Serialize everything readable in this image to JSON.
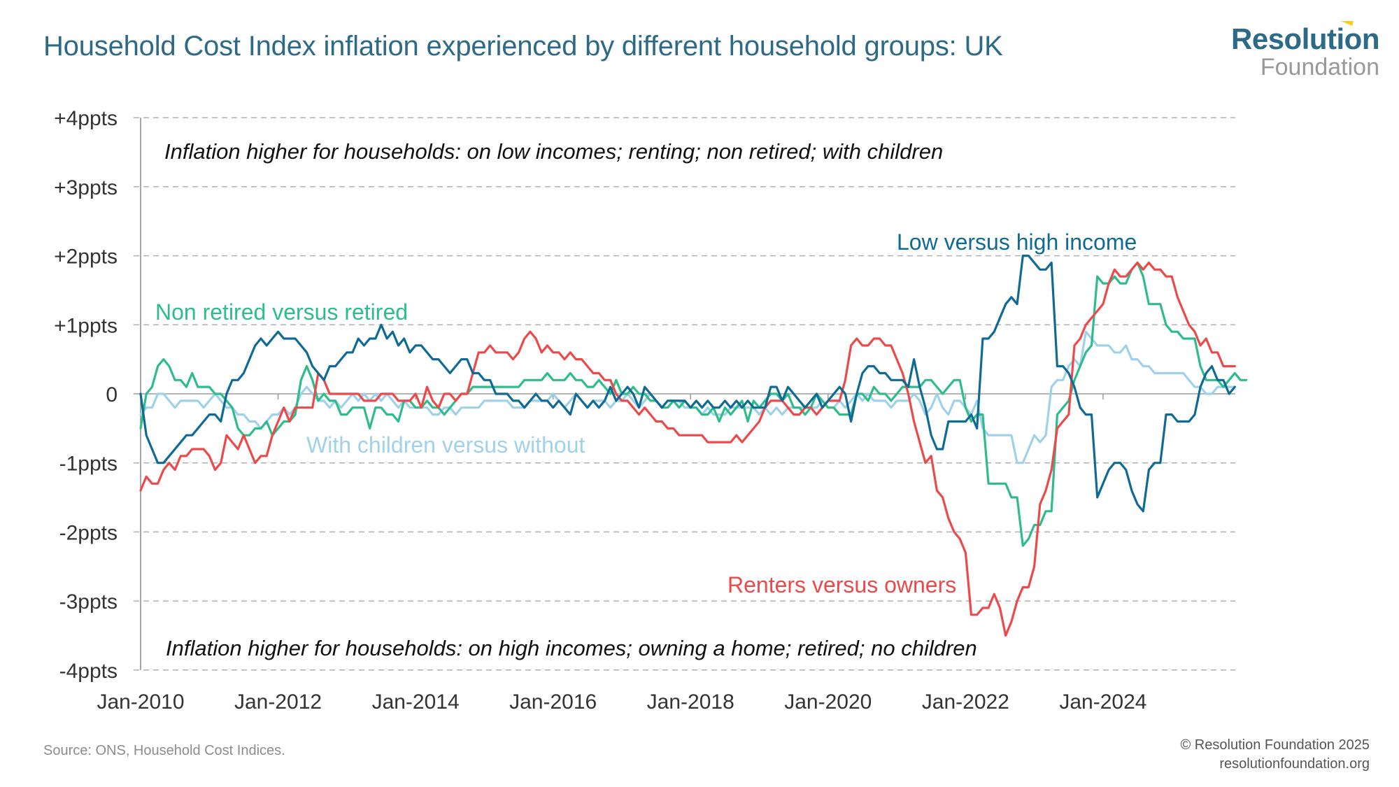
{
  "header": {
    "title": "Household Cost Index inflation experienced by different household groups: UK",
    "logo_line1": "Resolution",
    "logo_line2": "Foundation"
  },
  "footer": {
    "source": "Source: ONS, Household Cost Indices.",
    "copyright": "© Resolution Foundation 2025",
    "website": "resolutionfoundation.org"
  },
  "chart_data": {
    "type": "line",
    "title": "Household Cost Index inflation experienced by different household groups: UK",
    "xlabel": "",
    "ylabel": "",
    "x_start": "Jan-2010",
    "frequency": "monthly",
    "n_points": 192,
    "xticks": [
      "Jan-2010",
      "Jan-2012",
      "Jan-2014",
      "Jan-2016",
      "Jan-2018",
      "Jan-2020",
      "Jan-2022",
      "Jan-2024"
    ],
    "xtick_month_index": [
      0,
      24,
      48,
      72,
      96,
      120,
      144,
      168
    ],
    "yticks": [
      4,
      3,
      2,
      1,
      0,
      -1,
      -2,
      -3,
      -4
    ],
    "ytick_labels": [
      "+4ppts",
      "+3ppts",
      "+2ppts",
      "+1ppts",
      "0",
      "-1ppts",
      "-2ppts",
      "-3ppts",
      "-4ppts"
    ],
    "ylim": [
      -4,
      4
    ],
    "grid": "horizontal dashed",
    "annotations": {
      "top": "Inflation higher for households: on low incomes; renting; non retired; with children",
      "bottom": "Inflation higher for households: on high incomes; owning a home; retired; no children"
    },
    "series": [
      {
        "name": "Low versus high income",
        "color": "#0f6b94",
        "values": [
          0.0,
          -0.6,
          -0.8,
          -1.0,
          -1.0,
          -0.9,
          -0.8,
          -0.7,
          -0.6,
          -0.6,
          -0.5,
          -0.4,
          -0.3,
          -0.3,
          -0.4,
          0.0,
          0.2,
          0.2,
          0.3,
          0.5,
          0.7,
          0.8,
          0.7,
          0.8,
          0.9,
          0.8,
          0.8,
          0.8,
          0.7,
          0.6,
          0.4,
          0.3,
          0.2,
          0.4,
          0.4,
          0.5,
          0.6,
          0.6,
          0.8,
          0.7,
          0.8,
          0.8,
          1.0,
          0.8,
          0.9,
          0.7,
          0.8,
          0.6,
          0.7,
          0.7,
          0.6,
          0.5,
          0.5,
          0.4,
          0.3,
          0.4,
          0.5,
          0.5,
          0.3,
          0.3,
          0.2,
          0.2,
          0.0,
          0.0,
          0.0,
          -0.1,
          -0.1,
          -0.2,
          -0.1,
          0.0,
          -0.1,
          -0.1,
          -0.2,
          -0.1,
          -0.2,
          -0.3,
          0.0,
          -0.1,
          -0.2,
          -0.1,
          -0.2,
          -0.1,
          0.1,
          -0.1,
          0.0,
          0.1,
          0.0,
          -0.2,
          0.1,
          0.0,
          -0.1,
          -0.2,
          -0.1,
          -0.1,
          -0.1,
          -0.1,
          -0.2,
          -0.1,
          -0.2,
          -0.1,
          -0.2,
          -0.2,
          -0.1,
          -0.2,
          -0.1,
          -0.2,
          -0.1,
          -0.2,
          -0.2,
          -0.2,
          0.1,
          0.1,
          -0.1,
          0.1,
          0.0,
          -0.1,
          -0.2,
          -0.1,
          0.0,
          -0.2,
          -0.1,
          0.0,
          0.1,
          0.0,
          -0.4,
          0.0,
          0.3,
          0.4,
          0.4,
          0.3,
          0.3,
          0.2,
          0.2,
          0.2,
          0.1,
          0.5,
          0.1,
          -0.2,
          -0.6,
          -0.8,
          -0.8,
          -0.4,
          -0.4,
          -0.4,
          -0.4,
          -0.3,
          -0.5,
          0.8,
          0.8,
          0.9,
          1.1,
          1.3,
          1.4,
          1.3,
          2.0,
          2.0,
          1.9,
          1.8,
          1.8,
          1.9,
          0.4,
          0.4,
          0.3,
          0.1,
          -0.2,
          -0.3,
          -0.3,
          -1.5,
          -1.3,
          -1.1,
          -1.0,
          -1.0,
          -1.1,
          -1.4,
          -1.6,
          -1.7,
          -1.1,
          -1.0,
          -1.0,
          -0.3,
          -0.3,
          -0.4,
          -0.4,
          -0.4,
          -0.3,
          0.1,
          0.3,
          0.4,
          0.2,
          0.2,
          0.0,
          0.1
        ]
      },
      {
        "name": "Non retired versus retired",
        "color": "#2fbc8b",
        "values": [
          -0.5,
          0.0,
          0.1,
          0.4,
          0.5,
          0.4,
          0.2,
          0.2,
          0.1,
          0.3,
          0.1,
          0.1,
          0.1,
          0.0,
          0.0,
          -0.1,
          -0.2,
          -0.5,
          -0.6,
          -0.6,
          -0.5,
          -0.5,
          -0.4,
          -0.6,
          -0.5,
          -0.4,
          -0.4,
          -0.3,
          0.2,
          0.4,
          0.2,
          -0.1,
          0.0,
          -0.1,
          -0.1,
          -0.3,
          -0.3,
          -0.2,
          -0.2,
          -0.2,
          -0.5,
          -0.2,
          -0.2,
          -0.3,
          -0.3,
          -0.4,
          -0.1,
          -0.1,
          -0.2,
          -0.2,
          -0.1,
          -0.2,
          -0.2,
          -0.3,
          -0.2,
          -0.1,
          0.0,
          0.0,
          0.1,
          0.1,
          0.1,
          0.1,
          0.1,
          0.1,
          0.1,
          0.1,
          0.1,
          0.2,
          0.2,
          0.2,
          0.2,
          0.3,
          0.2,
          0.2,
          0.2,
          0.3,
          0.2,
          0.2,
          0.1,
          0.1,
          0.2,
          0.1,
          0.0,
          0.2,
          0.0,
          0.0,
          0.1,
          0.0,
          0.0,
          -0.1,
          -0.1,
          -0.2,
          -0.2,
          -0.1,
          -0.2,
          -0.1,
          -0.2,
          -0.2,
          -0.3,
          -0.3,
          -0.2,
          -0.4,
          -0.2,
          -0.3,
          -0.2,
          -0.1,
          -0.4,
          -0.1,
          -0.2,
          -0.1,
          0.0,
          0.0,
          -0.1,
          0.0,
          -0.2,
          -0.2,
          -0.3,
          -0.2,
          0.0,
          -0.1,
          -0.2,
          -0.2,
          -0.3,
          -0.3,
          -0.3,
          0.0,
          0.0,
          -0.1,
          0.1,
          0.0,
          0.0,
          -0.1,
          0.0,
          0.1,
          0.1,
          0.1,
          0.1,
          0.2,
          0.2,
          0.1,
          0.0,
          0.1,
          0.2,
          0.2,
          -0.2,
          -0.4,
          -0.3,
          -0.3,
          -1.3,
          -1.3,
          -1.3,
          -1.3,
          -1.5,
          -1.5,
          -2.2,
          -2.1,
          -1.9,
          -1.9,
          -1.7,
          -1.7,
          -0.3,
          -0.2,
          -0.1,
          0.2,
          0.4,
          0.6,
          0.7,
          1.7,
          1.6,
          1.6,
          1.7,
          1.6,
          1.6,
          1.8,
          1.9,
          1.7,
          1.3,
          1.3,
          1.3,
          1.0,
          0.9,
          0.9,
          0.8,
          0.8,
          0.8,
          0.4,
          0.2,
          0.2,
          0.2,
          0.1,
          0.2,
          0.3,
          0.2,
          0.2
        ]
      },
      {
        "name": "With children versus without",
        "color": "#9fd2ea",
        "values": [
          -0.3,
          -0.2,
          -0.2,
          0.0,
          0.0,
          -0.1,
          -0.2,
          -0.1,
          -0.1,
          -0.1,
          -0.1,
          -0.2,
          -0.1,
          0.0,
          -0.1,
          -0.2,
          -0.2,
          -0.3,
          -0.3,
          -0.4,
          -0.4,
          -0.5,
          -0.4,
          -0.3,
          -0.3,
          -0.2,
          -0.3,
          -0.2,
          0.0,
          0.1,
          0.0,
          -0.1,
          -0.1,
          -0.2,
          -0.1,
          -0.2,
          -0.1,
          0.0,
          -0.1,
          0.0,
          -0.1,
          0.0,
          -0.1,
          0.0,
          -0.1,
          -0.2,
          -0.1,
          -0.2,
          -0.2,
          -0.2,
          -0.2,
          -0.3,
          -0.3,
          -0.2,
          -0.2,
          -0.3,
          -0.2,
          -0.2,
          -0.2,
          -0.2,
          -0.1,
          -0.1,
          -0.1,
          -0.1,
          -0.1,
          -0.2,
          -0.2,
          -0.2,
          -0.1,
          -0.1,
          -0.1,
          -0.1,
          0.0,
          -0.1,
          -0.2,
          -0.1,
          0.0,
          -0.1,
          -0.2,
          -0.1,
          -0.1,
          -0.1,
          -0.2,
          -0.1,
          -0.1,
          0.0,
          -0.1,
          -0.2,
          -0.1,
          0.0,
          -0.1,
          -0.2,
          -0.1,
          -0.1,
          -0.1,
          -0.2,
          -0.2,
          -0.2,
          -0.3,
          -0.2,
          -0.3,
          -0.3,
          -0.3,
          -0.2,
          -0.2,
          -0.2,
          -0.2,
          -0.2,
          -0.3,
          -0.2,
          -0.3,
          -0.2,
          -0.3,
          -0.2,
          -0.2,
          -0.2,
          -0.2,
          -0.2,
          -0.2,
          -0.1,
          -0.2,
          -0.2,
          -0.1,
          -0.2,
          -0.1,
          0.0,
          -0.1,
          0.0,
          -0.1,
          -0.1,
          -0.1,
          -0.2,
          -0.1,
          -0.1,
          -0.1,
          0.0,
          -0.1,
          -0.3,
          -0.2,
          0.0,
          -0.2,
          -0.3,
          -0.1,
          -0.1,
          -0.2,
          -0.3,
          -0.1,
          -0.5,
          -0.6,
          -0.6,
          -0.6,
          -0.6,
          -0.6,
          -1.0,
          -1.0,
          -0.8,
          -0.6,
          -0.7,
          -0.6,
          0.1,
          0.2,
          0.2,
          0.4,
          0.5,
          0.4,
          0.9,
          0.8,
          0.7,
          0.7,
          0.7,
          0.6,
          0.6,
          0.7,
          0.5,
          0.5,
          0.4,
          0.4,
          0.3,
          0.3,
          0.3,
          0.3,
          0.3,
          0.3,
          0.2,
          0.1,
          0.1,
          0.0,
          0.0,
          0.1,
          0.1,
          0.1,
          0.1
        ]
      },
      {
        "name": "Renters versus owners",
        "color": "#ec4a4a",
        "values": [
          -1.4,
          -1.2,
          -1.3,
          -1.3,
          -1.1,
          -1.0,
          -1.1,
          -0.9,
          -0.9,
          -0.8,
          -0.8,
          -0.8,
          -0.9,
          -1.1,
          -1.0,
          -0.6,
          -0.7,
          -0.8,
          -0.6,
          -0.8,
          -1.0,
          -0.9,
          -0.9,
          -0.6,
          -0.4,
          -0.2,
          -0.4,
          -0.2,
          -0.2,
          -0.2,
          -0.2,
          0.3,
          0.2,
          0.0,
          0.0,
          0.0,
          0.0,
          0.0,
          0.0,
          -0.1,
          -0.1,
          -0.1,
          0.0,
          0.0,
          0.0,
          -0.1,
          -0.1,
          -0.1,
          0.0,
          -0.2,
          0.1,
          -0.1,
          -0.2,
          0.0,
          0.0,
          -0.1,
          0.0,
          0.0,
          0.3,
          0.6,
          0.6,
          0.7,
          0.6,
          0.6,
          0.6,
          0.5,
          0.6,
          0.8,
          0.9,
          0.8,
          0.6,
          0.7,
          0.6,
          0.6,
          0.5,
          0.6,
          0.5,
          0.5,
          0.4,
          0.3,
          0.3,
          0.2,
          0.2,
          0.0,
          -0.1,
          -0.1,
          -0.2,
          -0.3,
          -0.2,
          -0.3,
          -0.4,
          -0.4,
          -0.5,
          -0.5,
          -0.6,
          -0.6,
          -0.6,
          -0.6,
          -0.6,
          -0.7,
          -0.7,
          -0.7,
          -0.7,
          -0.7,
          -0.6,
          -0.7,
          -0.6,
          -0.5,
          -0.4,
          -0.2,
          -0.1,
          -0.1,
          -0.1,
          -0.2,
          -0.3,
          -0.3,
          -0.2,
          -0.2,
          -0.3,
          -0.2,
          -0.1,
          -0.1,
          -0.1,
          0.2,
          0.7,
          0.8,
          0.7,
          0.7,
          0.8,
          0.8,
          0.7,
          0.7,
          0.5,
          0.3,
          0.0,
          -0.4,
          -0.7,
          -1.0,
          -0.9,
          -1.4,
          -1.5,
          -1.8,
          -2.0,
          -2.1,
          -2.3,
          -3.2,
          -3.2,
          -3.1,
          -3.1,
          -2.9,
          -3.1,
          -3.5,
          -3.3,
          -3.0,
          -2.8,
          -2.8,
          -2.5,
          -1.6,
          -1.4,
          -1.1,
          -0.5,
          -0.4,
          -0.3,
          0.7,
          0.8,
          1.0,
          1.1,
          1.2,
          1.3,
          1.6,
          1.8,
          1.7,
          1.7,
          1.8,
          1.9,
          1.8,
          1.9,
          1.8,
          1.8,
          1.7,
          1.7,
          1.4,
          1.2,
          1.0,
          0.9,
          0.7,
          0.8,
          0.6,
          0.6,
          0.4,
          0.4,
          0.4
        ]
      }
    ],
    "series_labels": [
      {
        "series": "Low versus high income",
        "text": "Low versus high income"
      },
      {
        "series": "Non retired versus retired",
        "text": "Non retired versus retired"
      },
      {
        "series": "With children versus without",
        "text": "With children versus without"
      },
      {
        "series": "Renters versus owners",
        "text": "Renters versus owners"
      }
    ]
  }
}
